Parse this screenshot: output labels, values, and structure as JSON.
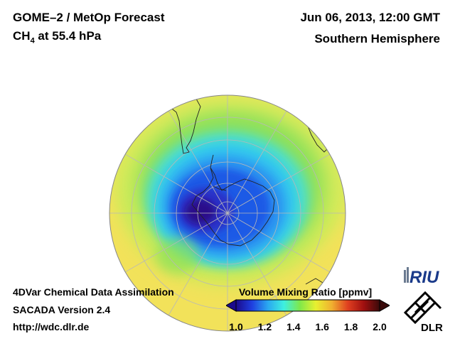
{
  "header": {
    "title": "GOME–2 / MetOp Forecast",
    "species_main": "CH",
    "species_sub": "4",
    "species_rest": " at 55.4 hPa",
    "datetime": "Jun 06, 2013, 12:00 GMT",
    "hemisphere": "Southern Hemisphere"
  },
  "footer": {
    "line1": "4DVar Chemical Data Assimilation",
    "line2": "SACADA Version 2.4",
    "line3": "http://wdc.dlr.de"
  },
  "colorbar": {
    "title": "Volume Mixing Ratio [ppmv]",
    "min": 1.0,
    "max": 2.0,
    "ticks": [
      "1.0",
      "1.2",
      "1.4",
      "1.6",
      "1.8",
      "2.0"
    ],
    "colors": [
      "#1a0a8c",
      "#1f3fe0",
      "#2aa8f0",
      "#3ef0e0",
      "#7fe84a",
      "#e8f030",
      "#f0b030",
      "#e04020",
      "#a01010",
      "#3a0a0a"
    ]
  },
  "logos": {
    "riu": "RIU",
    "dlr": "DLR"
  },
  "colors": {
    "background_field": "#f2e25a",
    "low_field": "#1e1aa8",
    "mid_field": "#2a8ff0",
    "green_band": "#8ce05a"
  }
}
